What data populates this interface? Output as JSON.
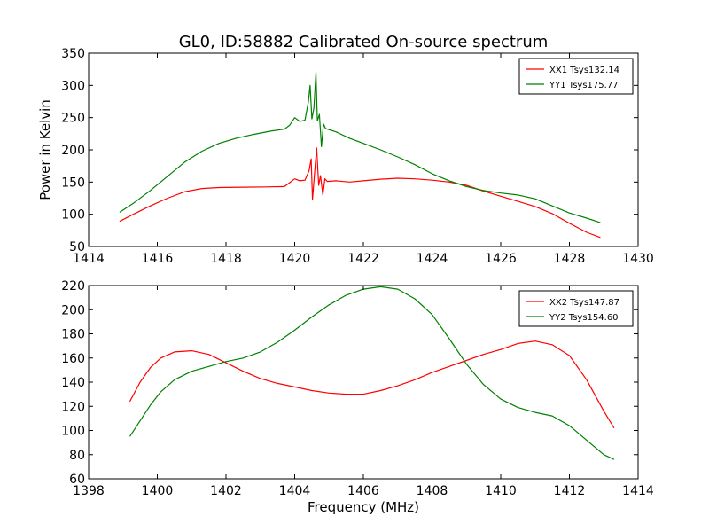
{
  "figure": {
    "title": "GL0, ID:58882 Calibrated On-source spectrum"
  },
  "chart_data": [
    {
      "type": "line",
      "xlabel": "",
      "ylabel": "Power in Kelvin",
      "xlim": [
        1414,
        1430
      ],
      "ylim": [
        50,
        350
      ],
      "xticks": [
        1414,
        1416,
        1418,
        1420,
        1422,
        1424,
        1426,
        1428,
        1430
      ],
      "yticks": [
        50,
        100,
        150,
        200,
        250,
        300,
        350
      ],
      "grid": false,
      "legend_position": "top-right",
      "series": [
        {
          "name": "XX1 Tsys132.14",
          "color": "#ff0000",
          "points": [
            [
              1414.9,
              89
            ],
            [
              1415.3,
              100
            ],
            [
              1415.8,
              113
            ],
            [
              1416.3,
              125
            ],
            [
              1416.8,
              135
            ],
            [
              1417.3,
              140
            ],
            [
              1417.8,
              141.5
            ],
            [
              1418.5,
              142
            ],
            [
              1419.2,
              142.5
            ],
            [
              1419.7,
              143
            ],
            [
              1419.85,
              149
            ],
            [
              1420.0,
              155
            ],
            [
              1420.15,
              152
            ],
            [
              1420.3,
              153
            ],
            [
              1420.42,
              168
            ],
            [
              1420.48,
              186
            ],
            [
              1420.52,
              123
            ],
            [
              1420.58,
              165
            ],
            [
              1420.64,
              203
            ],
            [
              1420.7,
              145
            ],
            [
              1420.75,
              160
            ],
            [
              1420.82,
              130
            ],
            [
              1420.88,
              155
            ],
            [
              1420.95,
              151
            ],
            [
              1421.2,
              152
            ],
            [
              1421.6,
              150
            ],
            [
              1422.0,
              152
            ],
            [
              1422.5,
              154.5
            ],
            [
              1423.0,
              156
            ],
            [
              1423.5,
              155
            ],
            [
              1424.0,
              153
            ],
            [
              1424.5,
              150
            ],
            [
              1425.0,
              145
            ],
            [
              1425.5,
              136
            ],
            [
              1426.0,
              128
            ],
            [
              1426.5,
              120
            ],
            [
              1427.0,
              112
            ],
            [
              1427.5,
              101
            ],
            [
              1428.0,
              86
            ],
            [
              1428.5,
              72
            ],
            [
              1428.9,
              64
            ]
          ]
        },
        {
          "name": "YY1 Tsys175.77",
          "color": "#008000",
          "points": [
            [
              1414.9,
              103
            ],
            [
              1415.3,
              117
            ],
            [
              1415.8,
              137
            ],
            [
              1416.3,
              159
            ],
            [
              1416.8,
              181
            ],
            [
              1417.3,
              198
            ],
            [
              1417.8,
              210
            ],
            [
              1418.3,
              218
            ],
            [
              1418.8,
              224
            ],
            [
              1419.3,
              229
            ],
            [
              1419.7,
              232
            ],
            [
              1419.85,
              238
            ],
            [
              1420.0,
              250
            ],
            [
              1420.15,
              244
            ],
            [
              1420.3,
              246
            ],
            [
              1420.4,
              275
            ],
            [
              1420.45,
              300
            ],
            [
              1420.5,
              248
            ],
            [
              1420.56,
              265
            ],
            [
              1420.62,
              320
            ],
            [
              1420.66,
              245
            ],
            [
              1420.72,
              255
            ],
            [
              1420.78,
              205
            ],
            [
              1420.84,
              240
            ],
            [
              1420.9,
              233
            ],
            [
              1421.2,
              228
            ],
            [
              1421.6,
              218
            ],
            [
              1422.0,
              210
            ],
            [
              1422.5,
              200
            ],
            [
              1423.0,
              189
            ],
            [
              1423.5,
              177
            ],
            [
              1424.0,
              163
            ],
            [
              1424.5,
              152
            ],
            [
              1425.0,
              143
            ],
            [
              1425.5,
              137
            ],
            [
              1426.0,
              133
            ],
            [
              1426.5,
              130
            ],
            [
              1427.0,
              124
            ],
            [
              1427.5,
              113
            ],
            [
              1428.0,
              102
            ],
            [
              1428.5,
              94
            ],
            [
              1428.9,
              87
            ]
          ]
        }
      ]
    },
    {
      "type": "line",
      "xlabel": "Frequency (MHz)",
      "ylabel": "",
      "xlim": [
        1398,
        1414
      ],
      "ylim": [
        60,
        220
      ],
      "xticks": [
        1398,
        1400,
        1402,
        1404,
        1406,
        1408,
        1410,
        1412,
        1414
      ],
      "yticks": [
        60,
        80,
        100,
        120,
        140,
        160,
        180,
        200,
        220
      ],
      "grid": false,
      "legend_position": "top-right",
      "series": [
        {
          "name": "XX2 Tsys147.87",
          "color": "#ff0000",
          "points": [
            [
              1399.2,
              124
            ],
            [
              1399.5,
              140
            ],
            [
              1399.8,
              152
            ],
            [
              1400.1,
              160
            ],
            [
              1400.5,
              165
            ],
            [
              1401.0,
              166
            ],
            [
              1401.5,
              163
            ],
            [
              1402.0,
              156
            ],
            [
              1402.5,
              149
            ],
            [
              1403.0,
              143
            ],
            [
              1403.5,
              139
            ],
            [
              1404.0,
              136
            ],
            [
              1404.5,
              133
            ],
            [
              1405.0,
              131
            ],
            [
              1405.5,
              130
            ],
            [
              1406.0,
              130
            ],
            [
              1406.5,
              133
            ],
            [
              1407.0,
              137
            ],
            [
              1407.5,
              142
            ],
            [
              1408.0,
              148
            ],
            [
              1408.5,
              153
            ],
            [
              1409.0,
              158
            ],
            [
              1409.5,
              163
            ],
            [
              1410.0,
              167
            ],
            [
              1410.5,
              172
            ],
            [
              1411.0,
              174
            ],
            [
              1411.5,
              171
            ],
            [
              1412.0,
              162
            ],
            [
              1412.5,
              142
            ],
            [
              1413.0,
              116
            ],
            [
              1413.3,
              102
            ]
          ]
        },
        {
          "name": "YY2 Tsys154.60",
          "color": "#008000",
          "points": [
            [
              1399.2,
              95
            ],
            [
              1399.5,
              108
            ],
            [
              1399.8,
              121
            ],
            [
              1400.1,
              132
            ],
            [
              1400.5,
              142
            ],
            [
              1401.0,
              149
            ],
            [
              1401.5,
              153
            ],
            [
              1402.0,
              157
            ],
            [
              1402.5,
              160
            ],
            [
              1403.0,
              165
            ],
            [
              1403.5,
              173
            ],
            [
              1404.0,
              183
            ],
            [
              1404.5,
              194
            ],
            [
              1405.0,
              204
            ],
            [
              1405.5,
              212
            ],
            [
              1406.0,
              217
            ],
            [
              1406.5,
              219
            ],
            [
              1407.0,
              217
            ],
            [
              1407.5,
              209
            ],
            [
              1408.0,
              196
            ],
            [
              1408.5,
              176
            ],
            [
              1409.0,
              155
            ],
            [
              1409.5,
              138
            ],
            [
              1410.0,
              126
            ],
            [
              1410.5,
              119
            ],
            [
              1411.0,
              115
            ],
            [
              1411.5,
              112
            ],
            [
              1412.0,
              104
            ],
            [
              1412.5,
              92
            ],
            [
              1413.0,
              80
            ],
            [
              1413.3,
              76
            ]
          ]
        }
      ]
    }
  ]
}
